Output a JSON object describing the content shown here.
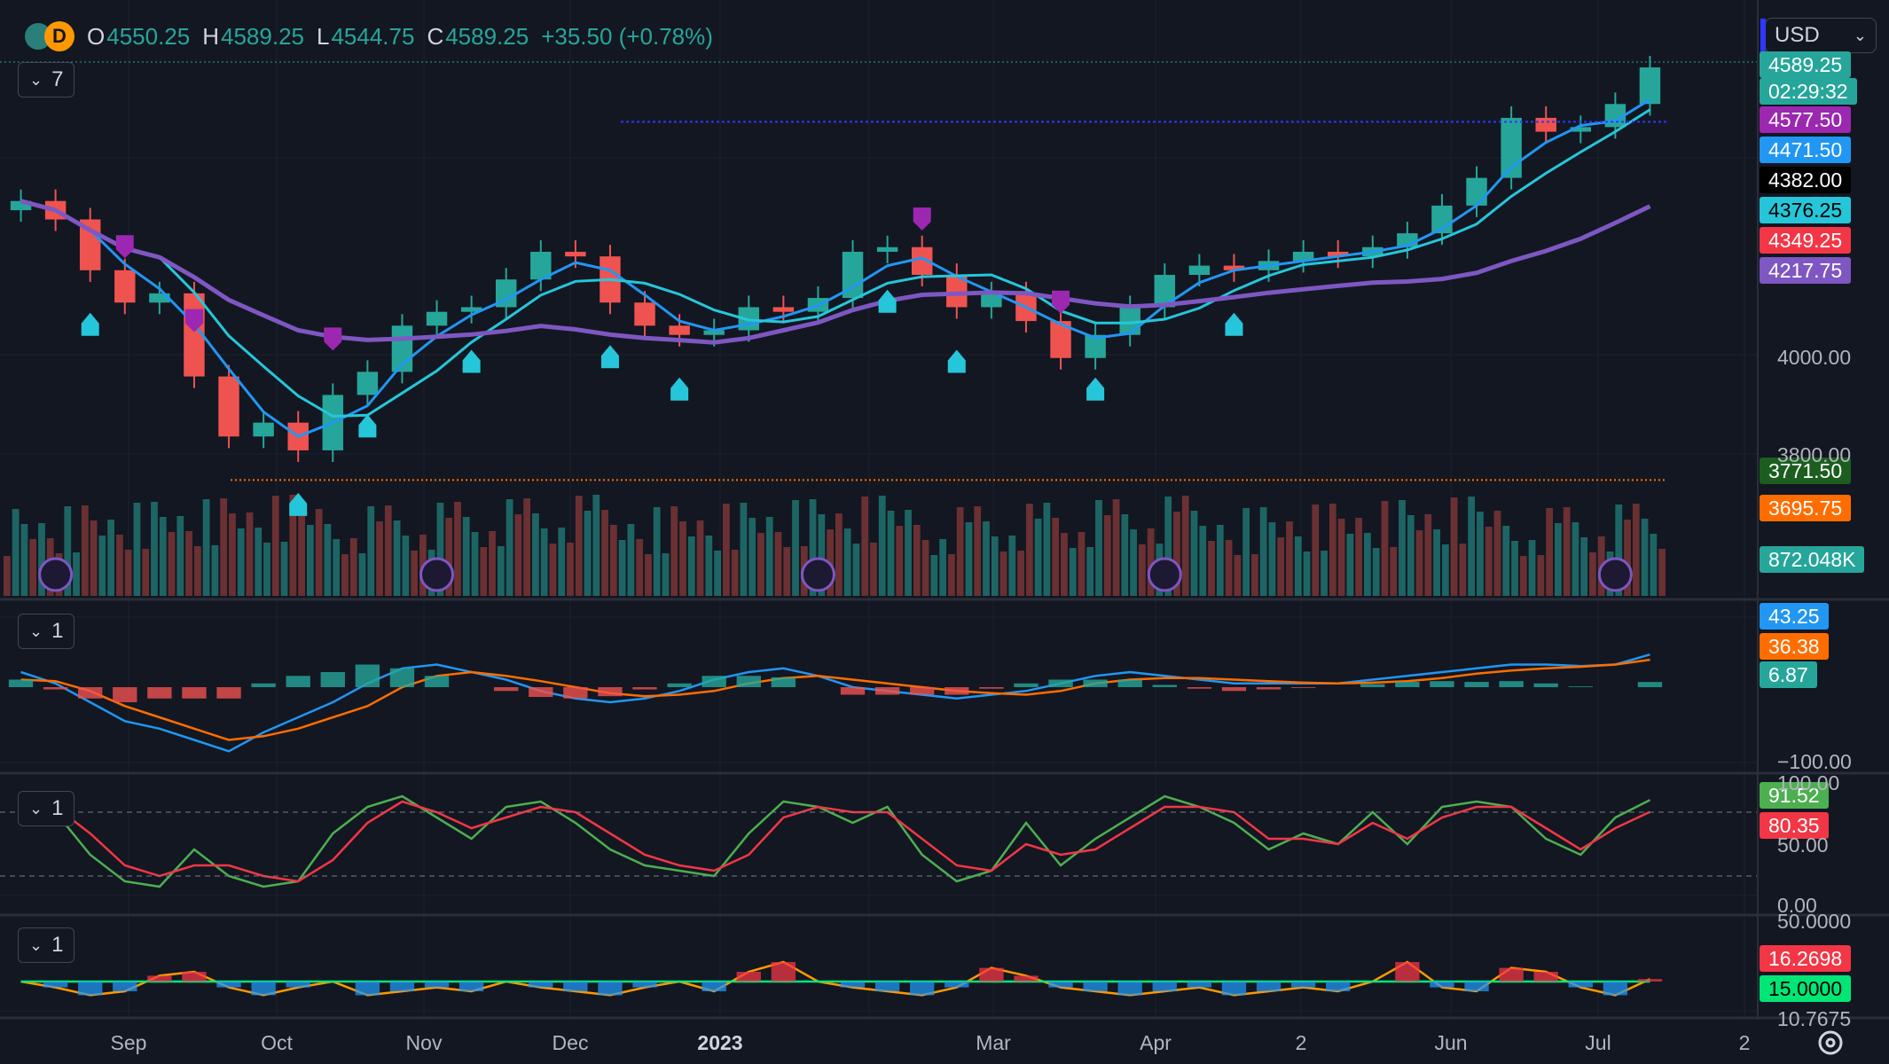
{
  "header": {
    "symbol_badge": "D",
    "open_label": "O",
    "open": "4550.25",
    "high_label": "H",
    "high": "4589.25",
    "low_label": "L",
    "low": "4544.75",
    "close_label": "C",
    "close": "4589.25",
    "change": "+35.50 (+0.78%)"
  },
  "currency": "USD",
  "pane_buttons": [
    "7",
    "1",
    "1",
    "1"
  ],
  "price_tags": [
    {
      "text": "4589.25",
      "bg": "#26a69a",
      "fg": "#ffffff"
    },
    {
      "text": "02:29:32",
      "bg": "#26a69a",
      "fg": "#ffffff"
    },
    {
      "text": "4577.50",
      "bg": "#9c27b0",
      "fg": "#ffffff"
    },
    {
      "text": "4471.50",
      "bg": "#2196f3",
      "fg": "#ffffff"
    },
    {
      "text": "4382.00",
      "bg": "#000000",
      "fg": "#ffffff"
    },
    {
      "text": "4376.25",
      "bg": "#26c6da",
      "fg": "#000000"
    },
    {
      "text": "4349.25",
      "bg": "#f23645",
      "fg": "#ffffff"
    },
    {
      "text": "4217.75",
      "bg": "#7e57c2",
      "fg": "#ffffff"
    },
    {
      "text": "3771.50",
      "bg": "#1b5e20",
      "fg": "#ffffff"
    },
    {
      "text": "3695.75",
      "bg": "#ff6d00",
      "fg": "#ffffff"
    },
    {
      "text": "872.048K",
      "bg": "#26a69a",
      "fg": "#ffffff"
    },
    {
      "text": "43.25",
      "bg": "#2196f3",
      "fg": "#ffffff"
    },
    {
      "text": "36.38",
      "bg": "#ff6d00",
      "fg": "#ffffff"
    },
    {
      "text": "6.87",
      "bg": "#26a69a",
      "fg": "#ffffff"
    },
    {
      "text": "91.52",
      "bg": "#4caf50",
      "fg": "#ffffff"
    },
    {
      "text": "80.35",
      "bg": "#f23645",
      "fg": "#ffffff"
    },
    {
      "text": "16.2698",
      "bg": "#f23645",
      "fg": "#ffffff"
    },
    {
      "text": "15.0000",
      "bg": "#00e676",
      "fg": "#000000"
    }
  ],
  "axis_labels": [
    "4000.00",
    "3800.00",
    "−100.00",
    "100.00",
    "50.00",
    "0.00",
    "50.0000",
    "10.7675"
  ],
  "x_labels": [
    "Sep",
    "Oct",
    "Nov",
    "Dec",
    "2023",
    "Mar",
    "Apr",
    "2",
    "Jun",
    "Jul",
    "2"
  ],
  "chart_data": [
    {
      "type": "candlestick",
      "name": "price",
      "x": [
        "2022-08-15",
        "2022-08-22",
        "2022-08-29",
        "2022-09-05",
        "2022-09-12",
        "2022-09-19",
        "2022-09-26",
        "2022-10-03",
        "2022-10-10",
        "2022-10-17",
        "2022-10-24",
        "2022-10-31",
        "2022-11-07",
        "2022-11-14",
        "2022-11-21",
        "2022-11-28",
        "2022-12-05",
        "2022-12-12",
        "2022-12-19",
        "2022-12-26",
        "2023-01-02",
        "2023-01-09",
        "2023-01-16",
        "2023-01-23",
        "2023-01-30",
        "2023-02-06",
        "2023-02-13",
        "2023-02-20",
        "2023-02-27",
        "2023-03-06",
        "2023-03-13",
        "2023-03-20",
        "2023-03-27",
        "2023-04-03",
        "2023-04-10",
        "2023-04-17",
        "2023-04-24",
        "2023-05-01",
        "2023-05-08",
        "2023-05-15",
        "2023-05-22",
        "2023-05-29",
        "2023-06-05",
        "2023-06-12",
        "2023-06-19",
        "2023-06-26",
        "2023-07-03",
        "2023-07-10"
      ],
      "close": [
        4300,
        4260,
        4150,
        4080,
        4100,
        3920,
        3790,
        3820,
        3760,
        3880,
        3930,
        4030,
        4060,
        4070,
        4130,
        4190,
        4180,
        4080,
        4030,
        4010,
        4020,
        4070,
        4060,
        4090,
        4190,
        4200,
        4140,
        4070,
        4100,
        4040,
        3960,
        4010,
        4070,
        4140,
        4160,
        4150,
        4170,
        4190,
        4180,
        4200,
        4230,
        4290,
        4350,
        4480,
        4450,
        4460,
        4510,
        4589.25
      ],
      "ylim": [
        3660,
        4620
      ]
    },
    {
      "type": "line",
      "name": "MACD",
      "ylim": [
        -100,
        100
      ],
      "series": [
        {
          "values": [
            20,
            5,
            -20,
            -45,
            -55,
            -70,
            -85,
            -60,
            -40,
            -20,
            5,
            25,
            30,
            20,
            10,
            -5,
            -15,
            -20,
            -15,
            -5,
            10,
            20,
            25,
            15,
            0,
            -5,
            -10,
            -15,
            -10,
            -5,
            5,
            15,
            20,
            15,
            10,
            5,
            5,
            5,
            5,
            10,
            15,
            20,
            25,
            30,
            30,
            28,
            30,
            43.25
          ]
        },
        {
          "values": [
            10,
            8,
            -5,
            -25,
            -40,
            -55,
            -70,
            -65,
            -55,
            -40,
            -25,
            0,
            15,
            20,
            15,
            8,
            0,
            -8,
            -12,
            -10,
            -5,
            5,
            12,
            15,
            10,
            5,
            0,
            -5,
            -8,
            -10,
            -5,
            5,
            10,
            12,
            12,
            10,
            8,
            6,
            5,
            6,
            8,
            12,
            18,
            22,
            25,
            27,
            30,
            36.38
          ]
        },
        {
          "values": [
            10,
            -3,
            -15,
            -20,
            -15,
            -15,
            -15,
            5,
            15,
            20,
            30,
            25,
            15,
            0,
            -5,
            -13,
            -15,
            -12,
            -3,
            5,
            15,
            15,
            13,
            0,
            -10,
            -10,
            -10,
            -10,
            -2,
            5,
            10,
            10,
            10,
            3,
            -2,
            -5,
            -3,
            -1,
            0,
            4,
            7,
            8,
            7,
            8,
            5,
            1,
            0,
            6.87
          ]
        }
      ]
    },
    {
      "type": "line",
      "name": "Stochastic",
      "ylim": [
        0,
        100
      ],
      "series": [
        {
          "values": [
            95,
            80,
            40,
            15,
            10,
            45,
            20,
            10,
            15,
            60,
            85,
            95,
            75,
            55,
            85,
            90,
            70,
            45,
            30,
            25,
            20,
            60,
            90,
            85,
            70,
            85,
            40,
            15,
            25,
            70,
            30,
            55,
            75,
            95,
            85,
            70,
            45,
            60,
            50,
            80,
            50,
            85,
            90,
            85,
            55,
            40,
            75,
            91.52
          ]
        },
        {
          "values": [
            95,
            85,
            60,
            30,
            20,
            30,
            30,
            20,
            15,
            35,
            70,
            90,
            80,
            65,
            75,
            85,
            80,
            60,
            40,
            30,
            25,
            40,
            75,
            85,
            80,
            80,
            55,
            30,
            25,
            50,
            40,
            45,
            65,
            85,
            85,
            80,
            55,
            55,
            50,
            70,
            55,
            75,
            85,
            85,
            65,
            45,
            65,
            80.35
          ]
        }
      ]
    },
    {
      "type": "line",
      "name": "ADX",
      "ylim": [
        0,
        50
      ],
      "series": [
        {
          "values": [
            15,
            12,
            8,
            10,
            18,
            20,
            12,
            8,
            12,
            15,
            8,
            10,
            12,
            10,
            15,
            12,
            10,
            8,
            12,
            15,
            10,
            20,
            25,
            15,
            12,
            10,
            8,
            12,
            22,
            18,
            12,
            10,
            8,
            10,
            12,
            8,
            10,
            12,
            10,
            15,
            25,
            12,
            10,
            22,
            20,
            12,
            8,
            16.2698
          ]
        },
        {
          "values": [
            15,
            15,
            15,
            15,
            15,
            15,
            15,
            15,
            15,
            15,
            15,
            15,
            15,
            15,
            15,
            15,
            15,
            15,
            15,
            15,
            15,
            15,
            15,
            15,
            15,
            15,
            15,
            15,
            15,
            15,
            15,
            15,
            15,
            15,
            15,
            15,
            15,
            15,
            15,
            15,
            15,
            15,
            15,
            15,
            15,
            15,
            15,
            15
          ]
        }
      ]
    }
  ]
}
